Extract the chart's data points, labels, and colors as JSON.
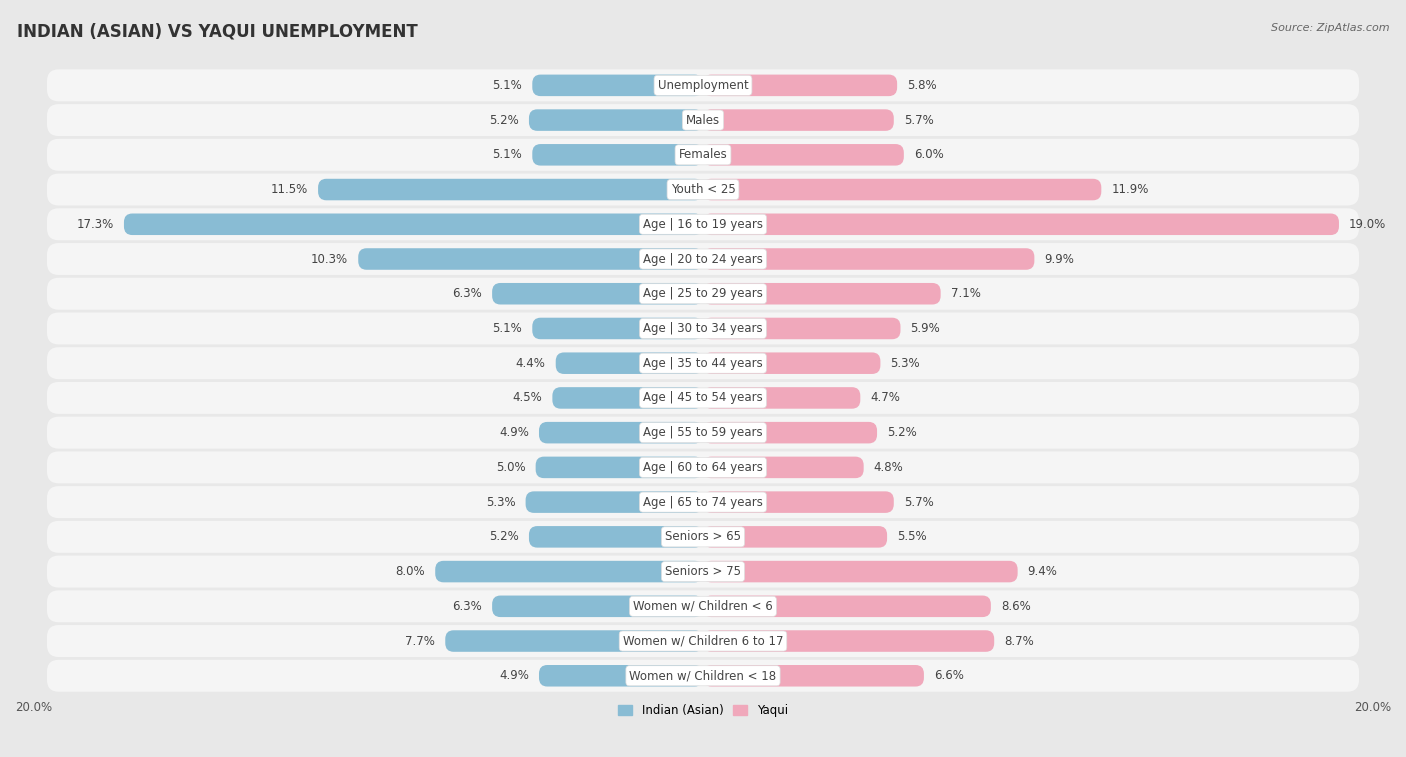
{
  "title": "INDIAN (ASIAN) VS YAQUI UNEMPLOYMENT",
  "source": "Source: ZipAtlas.com",
  "categories": [
    "Unemployment",
    "Males",
    "Females",
    "Youth < 25",
    "Age | 16 to 19 years",
    "Age | 20 to 24 years",
    "Age | 25 to 29 years",
    "Age | 30 to 34 years",
    "Age | 35 to 44 years",
    "Age | 45 to 54 years",
    "Age | 55 to 59 years",
    "Age | 60 to 64 years",
    "Age | 65 to 74 years",
    "Seniors > 65",
    "Seniors > 75",
    "Women w/ Children < 6",
    "Women w/ Children 6 to 17",
    "Women w/ Children < 18"
  ],
  "indian_values": [
    5.1,
    5.2,
    5.1,
    11.5,
    17.3,
    10.3,
    6.3,
    5.1,
    4.4,
    4.5,
    4.9,
    5.0,
    5.3,
    5.2,
    8.0,
    6.3,
    7.7,
    4.9
  ],
  "yaqui_values": [
    5.8,
    5.7,
    6.0,
    11.9,
    19.0,
    9.9,
    7.1,
    5.9,
    5.3,
    4.7,
    5.2,
    4.8,
    5.7,
    5.5,
    9.4,
    8.6,
    8.7,
    6.6
  ],
  "indian_color": "#89bcd4",
  "yaqui_color": "#f0a8bb",
  "indian_label": "Indian (Asian)",
  "yaqui_label": "Yaqui",
  "axis_max": 20.0,
  "bg_color": "#e8e8e8",
  "row_bg_color": "#f5f5f5",
  "bar_height": 0.62,
  "title_fontsize": 12,
  "label_fontsize": 8.5,
  "value_fontsize": 8.5,
  "tick_fontsize": 8.5,
  "source_fontsize": 8
}
